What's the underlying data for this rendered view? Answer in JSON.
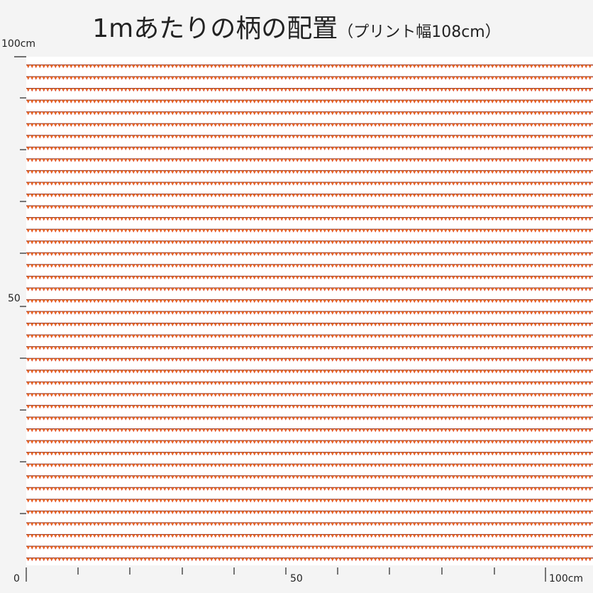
{
  "header": {
    "title": "1mあたりの柄の配置",
    "subtitle": "（プリント幅108cm）"
  },
  "y_axis": {
    "top_label": "100cm",
    "middle_label": "50"
  },
  "x_axis": {
    "start_label": "0",
    "middle_label": "50",
    "end_label": "100cm"
  }
}
